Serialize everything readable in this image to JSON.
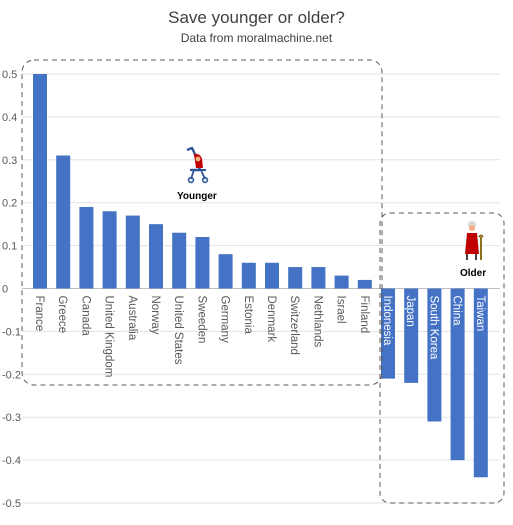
{
  "chart_data": {
    "type": "bar",
    "title": "Save younger or older?",
    "subtitle": "Data from moralmachine.net",
    "categories": [
      "France",
      "Greece",
      "Canada",
      "United Kingdom",
      "Australia",
      "Norway",
      "United States",
      "Sweeden",
      "Germany",
      "Estonia",
      "Denmark",
      "Switzerland",
      "Nethlands",
      "Israel",
      "Finland",
      "Indonesia",
      "Japan",
      "South Korea",
      "China",
      "Taiwan"
    ],
    "values": [
      0.5,
      0.31,
      0.19,
      0.18,
      0.17,
      0.15,
      0.13,
      0.12,
      0.08,
      0.06,
      0.06,
      0.05,
      0.05,
      0.03,
      0.02,
      -0.21,
      -0.22,
      -0.31,
      -0.4,
      -0.44
    ],
    "ylim": [
      -0.5,
      0.5
    ],
    "yticks": [
      "0.5",
      "0.4",
      "0.3",
      "0.2",
      "0.1",
      "0",
      "-0.1",
      "-0.2",
      "-0.3",
      "-0.4",
      "-0.5"
    ],
    "grid": true,
    "bar_color": "#4472C4",
    "annotations": [
      {
        "label": "Younger",
        "icon": "stroller-icon"
      },
      {
        "label": "Older",
        "icon": "elderly-person-icon"
      }
    ]
  }
}
